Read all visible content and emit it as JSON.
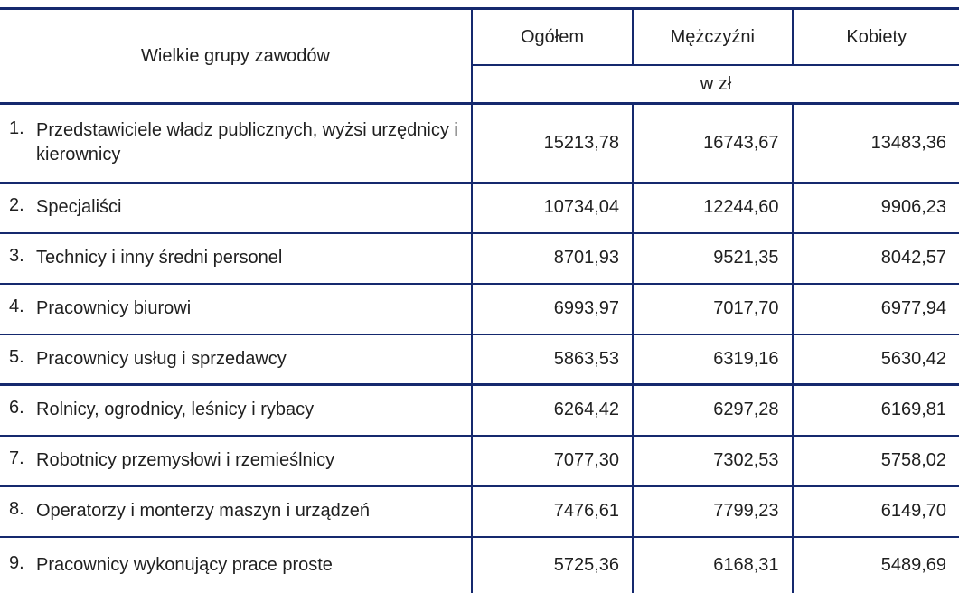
{
  "header": {
    "col_label": "Wielkie grupy zawodów",
    "col_total": "Ogółem",
    "col_men": "Mężczyźni",
    "col_women": "Kobiety",
    "unit": "w zł"
  },
  "rows": [
    {
      "no": "1.",
      "label": "Przedstawiciele władz publicznych, wyżsi urzędnicy i kierownicy",
      "total": "15213,78",
      "men": "16743,67",
      "women": "13483,36"
    },
    {
      "no": "2.",
      "label": "Specjaliści",
      "total": "10734,04",
      "men": "12244,60",
      "women": "9906,23"
    },
    {
      "no": "3.",
      "label": "Technicy i inny średni personel",
      "total": "8701,93",
      "men": "9521,35",
      "women": "8042,57"
    },
    {
      "no": "4.",
      "label": "Pracownicy biurowi",
      "total": "6993,97",
      "men": "7017,70",
      "women": "6977,94"
    },
    {
      "no": "5.",
      "label": "Pracownicy usług i sprzedawcy",
      "total": "5863,53",
      "men": "6319,16",
      "women": "5630,42"
    },
    {
      "no": "6.",
      "label": "Rolnicy, ogrodnicy, leśnicy i rybacy",
      "total": "6264,42",
      "men": "6297,28",
      "women": "6169,81"
    },
    {
      "no": "7.",
      "label": "Robotnicy przemysłowi i rzemieślnicy",
      "total": "7077,30",
      "men": "7302,53",
      "women": "5758,02"
    },
    {
      "no": "8.",
      "label": "Operatorzy i monterzy maszyn i urządzeń",
      "total": "7476,61",
      "men": "7799,23",
      "women": "6149,70"
    },
    {
      "no": "9.",
      "label": "Pracownicy wykonujący prace proste",
      "total": "5725,36",
      "men": "6168,31",
      "women": "5489,69"
    }
  ],
  "colors": {
    "border_navy": "#15296e",
    "text": "#1f1f1f"
  }
}
